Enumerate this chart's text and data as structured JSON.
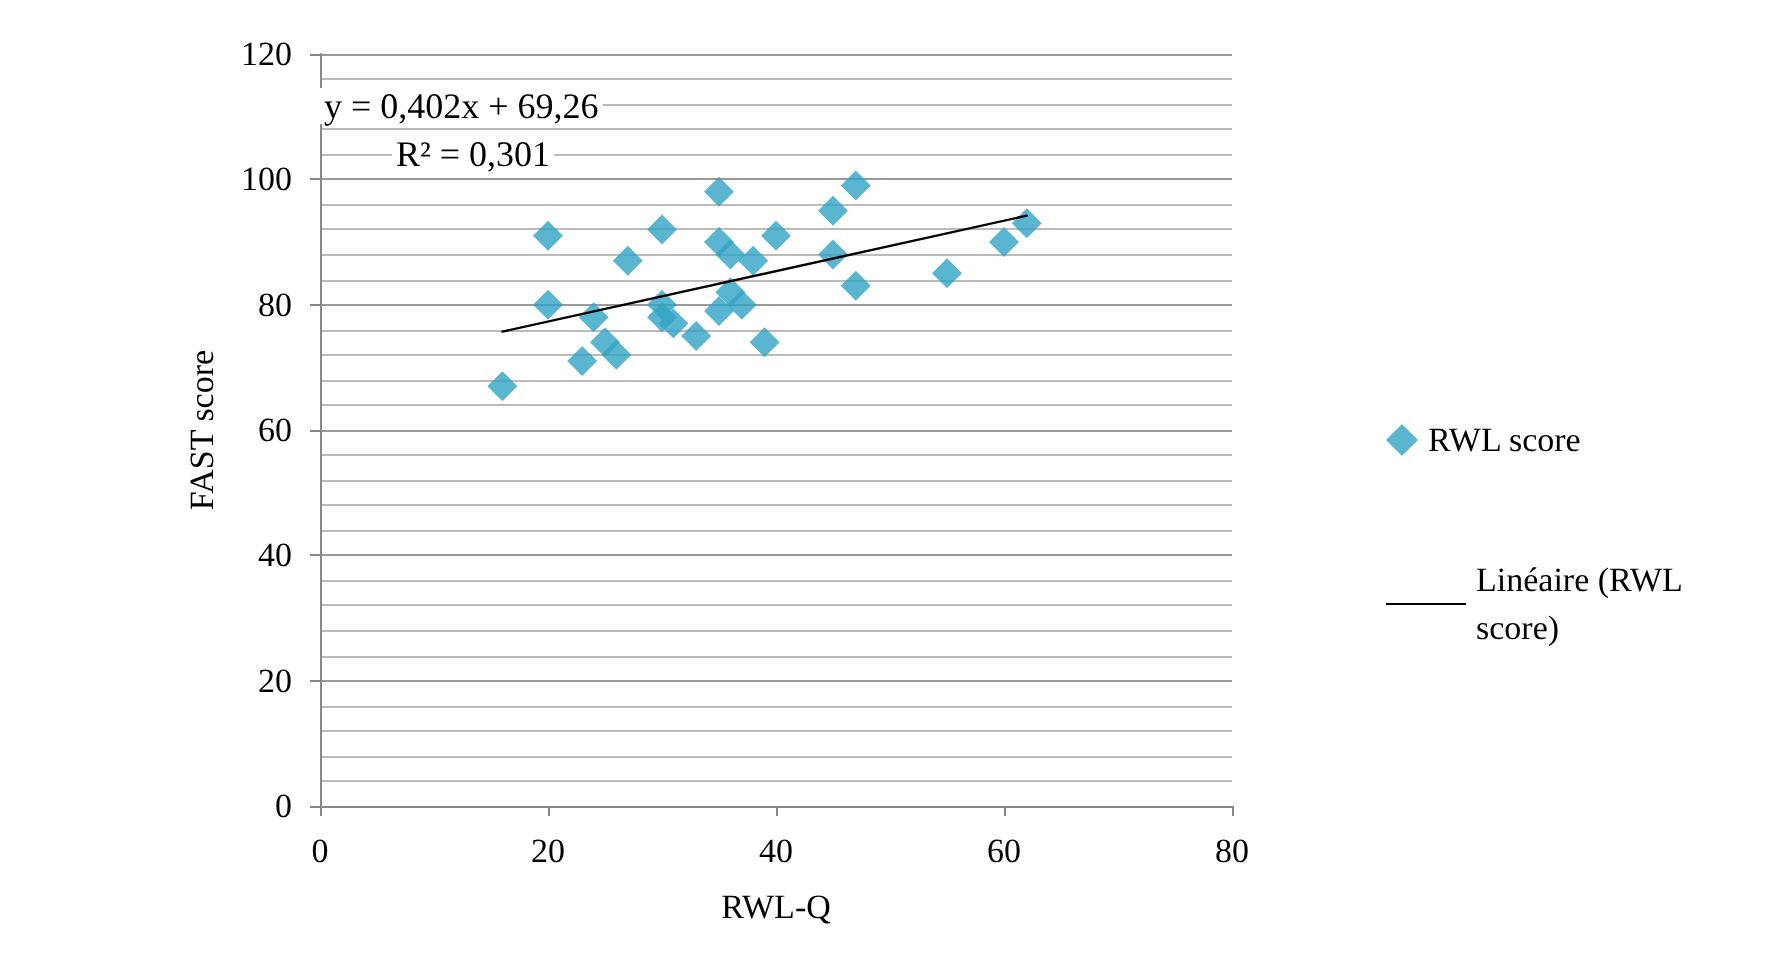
{
  "chart_data": {
    "type": "scatter",
    "xlabel": "RWL-Q",
    "ylabel": "FAST score",
    "xlim": [
      0,
      80
    ],
    "xticks": [
      0,
      20,
      40,
      60,
      80
    ],
    "ylim": [
      0,
      120
    ],
    "yticks": [
      0,
      20,
      40,
      60,
      80,
      100,
      120
    ],
    "grid": "y",
    "legend": "right",
    "marker": "diamond",
    "annotations": [
      "y = 0,402x + 69,26",
      "R² = 0,301"
    ],
    "series": [
      {
        "name": "RWL score",
        "color": "#31a3c6",
        "x": [
          16,
          20,
          20,
          23,
          24,
          25,
          26,
          27,
          30,
          30,
          30,
          31,
          33,
          35,
          35,
          35,
          36,
          36,
          37,
          38,
          39,
          40,
          45,
          45,
          47,
          47,
          55,
          60,
          62
        ],
        "values": [
          67,
          91,
          80,
          71,
          78,
          74,
          72,
          87,
          92,
          80,
          78,
          77,
          75,
          98,
          90,
          79,
          82,
          88,
          80,
          87,
          74,
          91,
          95,
          88,
          99,
          83,
          85,
          90,
          93
        ]
      },
      {
        "name": "Linéaire (RWL score)",
        "type": "line",
        "color": "#000000",
        "marker": "none",
        "line_style": "solid",
        "x": [
          16,
          62
        ],
        "values": [
          75.7,
          94.2
        ]
      }
    ]
  }
}
